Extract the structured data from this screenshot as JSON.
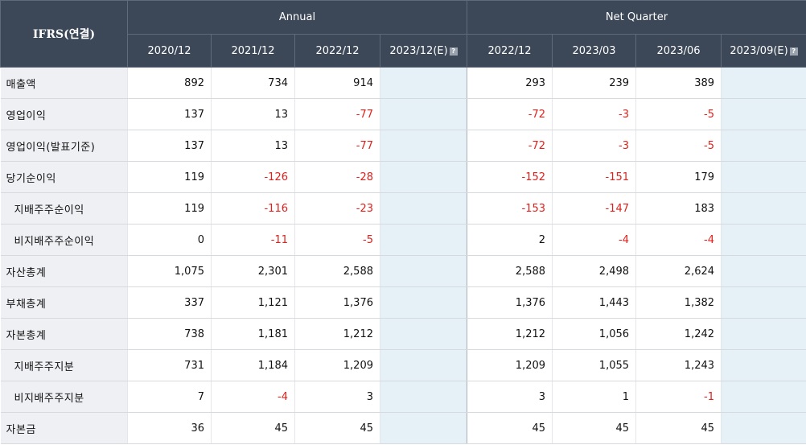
{
  "table": {
    "corner_label": "IFRS(연결)",
    "groups": [
      {
        "label": "Annual"
      },
      {
        "label": "Net Quarter"
      }
    ],
    "columns": [
      {
        "label": "2020/12",
        "estimate": false
      },
      {
        "label": "2021/12",
        "estimate": false
      },
      {
        "label": "2022/12",
        "estimate": false
      },
      {
        "label": "2023/12(E)",
        "estimate": true
      },
      {
        "label": "2022/12",
        "estimate": false
      },
      {
        "label": "2023/03",
        "estimate": false
      },
      {
        "label": "2023/06",
        "estimate": false
      },
      {
        "label": "2023/09(E)",
        "estimate": true
      }
    ],
    "help_icon": "help-icon",
    "rows": [
      {
        "label": "매출액",
        "indent": false,
        "values": [
          "892",
          "734",
          "914",
          "",
          "293",
          "239",
          "389",
          ""
        ]
      },
      {
        "label": "영업이익",
        "indent": false,
        "values": [
          "137",
          "13",
          "-77",
          "",
          "-72",
          "-3",
          "-5",
          ""
        ]
      },
      {
        "label": "영업이익(발표기준)",
        "indent": false,
        "values": [
          "137",
          "13",
          "-77",
          "",
          "-72",
          "-3",
          "-5",
          ""
        ]
      },
      {
        "label": "당기순이익",
        "indent": false,
        "values": [
          "119",
          "-126",
          "-28",
          "",
          "-152",
          "-151",
          "179",
          ""
        ]
      },
      {
        "label": "지배주주순이익",
        "indent": true,
        "values": [
          "119",
          "-116",
          "-23",
          "",
          "-153",
          "-147",
          "183",
          ""
        ]
      },
      {
        "label": "비지배주주순이익",
        "indent": true,
        "values": [
          "0",
          "-11",
          "-5",
          "",
          "2",
          "-4",
          "-4",
          ""
        ]
      },
      {
        "label": "자산총계",
        "indent": false,
        "values": [
          "1,075",
          "2,301",
          "2,588",
          "",
          "2,588",
          "2,498",
          "2,624",
          ""
        ]
      },
      {
        "label": "부채총계",
        "indent": false,
        "values": [
          "337",
          "1,121",
          "1,376",
          "",
          "1,376",
          "1,443",
          "1,382",
          ""
        ]
      },
      {
        "label": "자본총계",
        "indent": false,
        "values": [
          "738",
          "1,181",
          "1,212",
          "",
          "1,212",
          "1,056",
          "1,242",
          ""
        ]
      },
      {
        "label": "지배주주지분",
        "indent": true,
        "values": [
          "731",
          "1,184",
          "1,209",
          "",
          "1,209",
          "1,055",
          "1,243",
          ""
        ]
      },
      {
        "label": "비지배주주지분",
        "indent": true,
        "values": [
          "7",
          "-4",
          "3",
          "",
          "3",
          "1",
          "-1",
          ""
        ]
      },
      {
        "label": "자본금",
        "indent": false,
        "values": [
          "36",
          "45",
          "45",
          "",
          "45",
          "45",
          "45",
          ""
        ]
      }
    ]
  }
}
